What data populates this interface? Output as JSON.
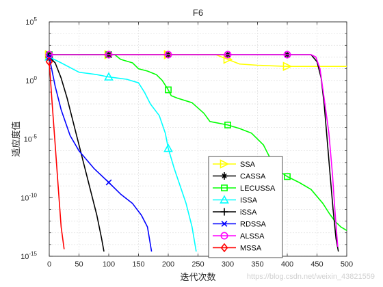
{
  "chart_data": {
    "type": "line",
    "title": "F6",
    "xlabel": "迭代次数",
    "ylabel": "适应度值",
    "xlim": [
      0,
      500
    ],
    "ylim_exponents": [
      -15,
      5
    ],
    "yscale": "log",
    "grid": true,
    "legend_position": "lower-right",
    "x_ticks": [
      "0",
      "50",
      "100",
      "150",
      "200",
      "250",
      "300",
      "350",
      "400",
      "450",
      "500"
    ],
    "y_ticks": [
      {
        "base": "10",
        "exp": "5",
        "log10": 5
      },
      {
        "base": "10",
        "exp": "0",
        "log10": 0
      },
      {
        "base": "10",
        "exp": "-5",
        "log10": -5
      },
      {
        "base": "10",
        "exp": "-10",
        "log10": -10
      },
      {
        "base": "10",
        "exp": "-15",
        "log10": -15
      }
    ],
    "series": [
      {
        "name": "SSA",
        "color": "#ffff00",
        "marker": "triangle-right",
        "points": [
          [
            0,
            2.2
          ],
          [
            280,
            2.2
          ],
          [
            300,
            1.8
          ],
          [
            320,
            1.4
          ],
          [
            350,
            1.3
          ],
          [
            400,
            1.2
          ],
          [
            450,
            1.2
          ],
          [
            500,
            1.2
          ]
        ],
        "marker_x": [
          0,
          100,
          200,
          300,
          400
        ]
      },
      {
        "name": "CASSA",
        "color": "#000000",
        "marker": "asterisk",
        "points": [
          [
            0,
            2.2
          ],
          [
            440,
            2.2
          ],
          [
            450,
            1.6
          ],
          [
            457,
            0.2
          ],
          [
            462,
            -2
          ],
          [
            467,
            -5
          ],
          [
            472,
            -8
          ],
          [
            477,
            -11
          ],
          [
            482,
            -13.5
          ],
          [
            486,
            -14.6
          ]
        ],
        "marker_x": [
          0,
          100,
          200,
          300,
          400
        ]
      },
      {
        "name": "LECUSSA",
        "color": "#00ff00",
        "marker": "square",
        "points": [
          [
            0,
            2.2
          ],
          [
            110,
            2.2
          ],
          [
            120,
            1.8
          ],
          [
            140,
            1.5
          ],
          [
            150,
            1.0
          ],
          [
            165,
            0.8
          ],
          [
            180,
            0.5
          ],
          [
            190,
            0.0
          ],
          [
            200,
            -0.8
          ],
          [
            205,
            -1.3
          ],
          [
            215,
            -1.5
          ],
          [
            240,
            -1.9
          ],
          [
            260,
            -2.8
          ],
          [
            270,
            -3.5
          ],
          [
            300,
            -3.8
          ],
          [
            320,
            -4.1
          ],
          [
            340,
            -4.5
          ],
          [
            360,
            -5.5
          ],
          [
            380,
            -7.5
          ],
          [
            400,
            -8.2
          ],
          [
            420,
            -8.7
          ],
          [
            440,
            -9.3
          ],
          [
            460,
            -10.5
          ],
          [
            470,
            -11.3
          ],
          [
            480,
            -12.0
          ],
          [
            490,
            -12.5
          ],
          [
            500,
            -12.8
          ]
        ],
        "marker_x": [
          0,
          100,
          200,
          300,
          400
        ]
      },
      {
        "name": "ISSA",
        "color": "#00ffff",
        "marker": "triangle-up",
        "points": [
          [
            0,
            2.0
          ],
          [
            20,
            1.5
          ],
          [
            50,
            0.7
          ],
          [
            80,
            0.5
          ],
          [
            100,
            0.3
          ],
          [
            130,
            0.1
          ],
          [
            150,
            -0.2
          ],
          [
            160,
            -1.0
          ],
          [
            170,
            -2.0
          ],
          [
            185,
            -3.0
          ],
          [
            195,
            -4.5
          ],
          [
            200,
            -5.8
          ],
          [
            210,
            -7.5
          ],
          [
            220,
            -9.0
          ],
          [
            230,
            -10.5
          ],
          [
            240,
            -12.5
          ],
          [
            247,
            -14.6
          ]
        ],
        "marker_x": [
          0,
          100,
          200
        ]
      },
      {
        "name": "iSSA",
        "color": "#000000",
        "marker": "plus",
        "points": [
          [
            0,
            2.0
          ],
          [
            10,
            1.5
          ],
          [
            20,
            0.2
          ],
          [
            30,
            -1.5
          ],
          [
            40,
            -3.5
          ],
          [
            50,
            -5.5
          ],
          [
            60,
            -7.5
          ],
          [
            70,
            -9.5
          ],
          [
            80,
            -11.5
          ],
          [
            88,
            -13.5
          ],
          [
            92,
            -14.6
          ]
        ],
        "marker_x": [
          0
        ]
      },
      {
        "name": "RDSSA",
        "color": "#0000ff",
        "marker": "x",
        "points": [
          [
            0,
            2.0
          ],
          [
            10,
            -0.5
          ],
          [
            20,
            -2.5
          ],
          [
            35,
            -4.7
          ],
          [
            50,
            -6.0
          ],
          [
            75,
            -7.5
          ],
          [
            100,
            -8.7
          ],
          [
            120,
            -9.7
          ],
          [
            140,
            -10.5
          ],
          [
            155,
            -11.5
          ],
          [
            165,
            -12.5
          ],
          [
            172,
            -14.6
          ]
        ],
        "marker_x": [
          0,
          100
        ]
      },
      {
        "name": "ALSSA",
        "color": "#ff00ff",
        "marker": "circle",
        "points": [
          [
            0,
            2.2
          ],
          [
            440,
            2.2
          ],
          [
            448,
            2.0
          ],
          [
            455,
            1.0
          ],
          [
            462,
            -1.5
          ],
          [
            470,
            -4.5
          ],
          [
            476,
            -8.0
          ],
          [
            480,
            -11.0
          ],
          [
            483,
            -13.0
          ],
          [
            485,
            -14.2
          ]
        ],
        "marker_x": [
          0,
          100,
          200,
          300,
          400
        ]
      },
      {
        "name": "MSSA",
        "color": "#ff0000",
        "marker": "diamond",
        "points": [
          [
            0,
            1.6
          ],
          [
            5,
            -2.0
          ],
          [
            10,
            -5.5
          ],
          [
            15,
            -9.0
          ],
          [
            20,
            -12.5
          ],
          [
            25,
            -14.4
          ]
        ],
        "marker_x": [
          0
        ]
      }
    ]
  },
  "watermark": "https://blog.csdn.net/weixin_43821559"
}
